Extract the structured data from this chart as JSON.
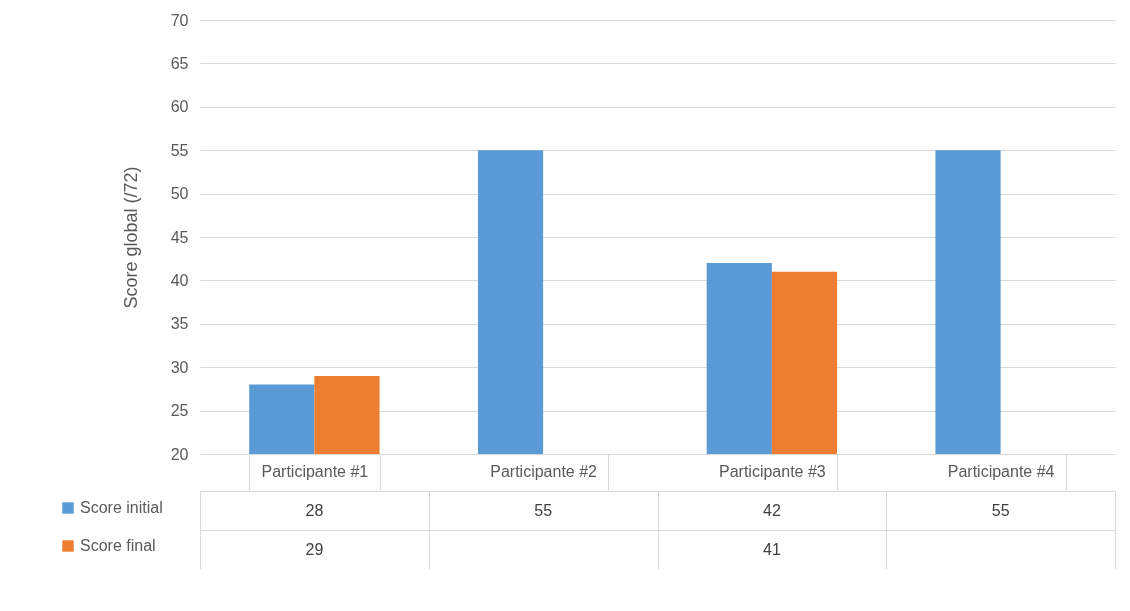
{
  "chart_data": {
    "type": "bar",
    "ylabel": "Score global (/72)",
    "categories": [
      "Participante #1",
      "Participante #2",
      "Participante #3",
      "Participante #4"
    ],
    "series": [
      {
        "name": "Score initial",
        "color": "#5b9bd5",
        "values": [
          28,
          55,
          42,
          55
        ]
      },
      {
        "name": "Score final",
        "color": "#ed7d31",
        "values": [
          29,
          null,
          41,
          null
        ]
      }
    ],
    "ylim": [
      20,
      70
    ],
    "yticks": [
      20,
      25,
      30,
      35,
      40,
      45,
      50,
      55,
      60,
      65,
      70
    ],
    "grid": "y",
    "legend": "bottom left",
    "data_labels": true
  }
}
